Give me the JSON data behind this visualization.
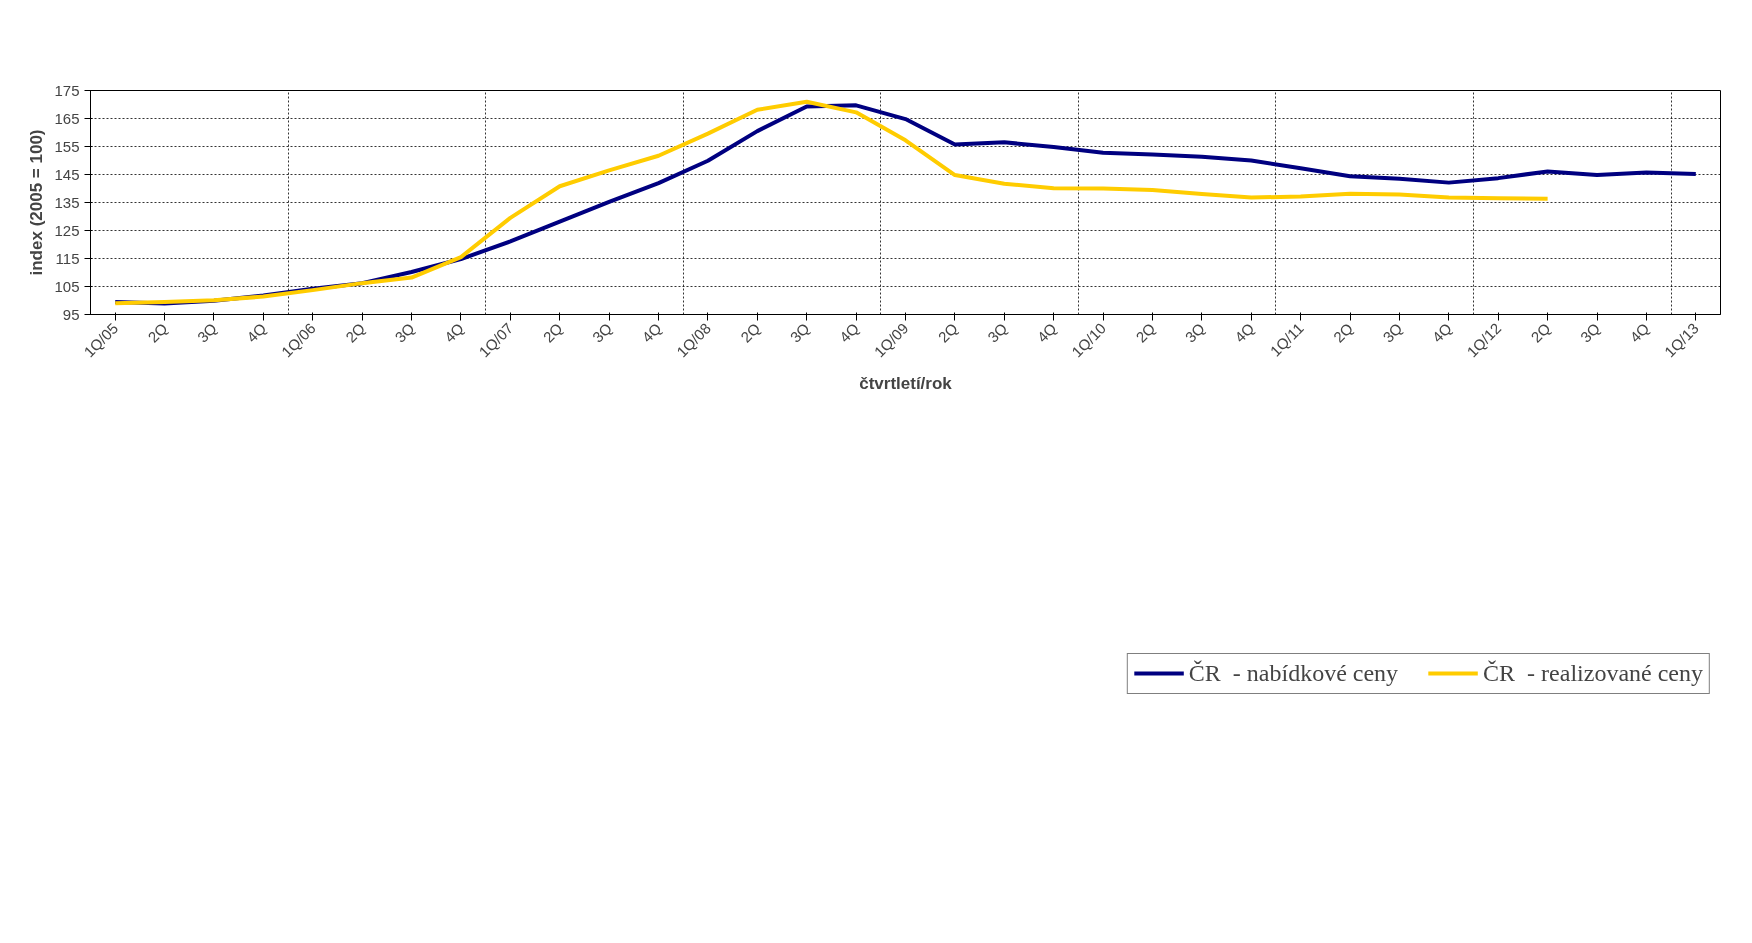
{
  "chart_data": {
    "type": "line",
    "xlabel": "čtvrtletí/rok",
    "ylabel": "index (2005 = 100)",
    "categories": [
      "1Q/05",
      "2Q",
      "3Q",
      "4Q",
      "1Q/06",
      "2Q",
      "3Q",
      "4Q",
      "1Q/07",
      "2Q",
      "3Q",
      "4Q",
      "1Q/08",
      "2Q",
      "3Q",
      "4Q",
      "1Q/09",
      "2Q",
      "3Q",
      "4Q",
      "1Q/10",
      "2Q",
      "3Q",
      "4Q",
      "1Q/11",
      "2Q",
      "3Q",
      "4Q",
      "1Q/12",
      "2Q",
      "3Q",
      "4Q",
      "1Q/13"
    ],
    "series": [
      {
        "name": "ČR  - nabídkové ceny",
        "color": "#000080",
        "values": [
          99.5,
          98.9,
          99.9,
          101.8,
          104.2,
          106.2,
          110.2,
          114.8,
          121.1,
          128.2,
          135.2,
          141.9,
          149.9,
          160.5,
          169.3,
          169.7,
          164.8,
          155.7,
          156.5,
          154.8,
          152.8,
          152.1,
          151.3,
          150.0,
          147.2,
          144.4,
          143.5,
          142.1,
          143.7,
          146.1,
          144.8,
          145.7,
          145.2
        ]
      },
      {
        "name": "ČR  - realizované ceny",
        "color": "#ffcc00",
        "values": [
          99.0,
          99.5,
          100.1,
          101.4,
          103.7,
          106.2,
          108.2,
          115.5,
          129.5,
          140.8,
          146.5,
          151.7,
          159.6,
          168.1,
          171.0,
          167.2,
          157.2,
          144.8,
          141.7,
          140.1,
          140.0,
          139.5,
          138.0,
          136.8,
          137.1,
          138.1,
          137.9,
          136.8,
          136.5,
          136.3,
          null,
          null,
          null
        ]
      }
    ],
    "ylim": [
      95,
      175
    ],
    "yticks": [
      95,
      105,
      115,
      125,
      135,
      145,
      155,
      165,
      175
    ],
    "grid": true,
    "legend": "bottom",
    "marker": "none",
    "line_style": "solid"
  }
}
